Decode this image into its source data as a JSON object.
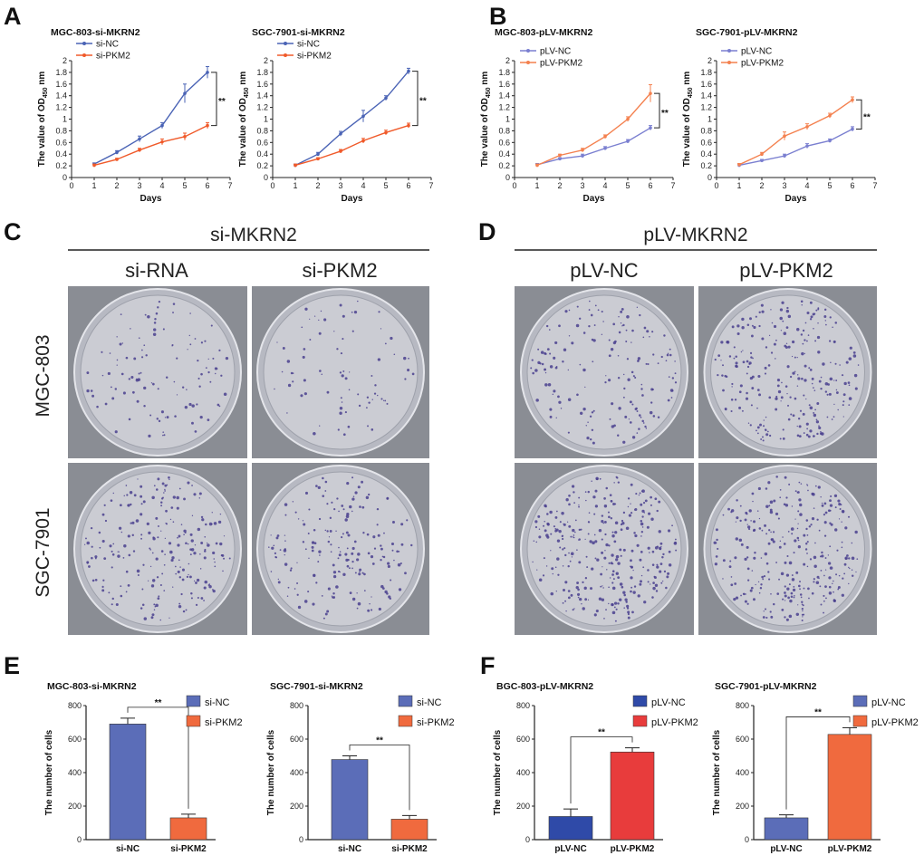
{
  "panel_letters": {
    "a": "A",
    "b": "B",
    "c": "C",
    "d": "D",
    "e": "E",
    "f": "F"
  },
  "colony": {
    "left_header": "si-MKRN2",
    "right_header": "pLV-MKRN2",
    "left_columns": [
      "si-RNA",
      "si-PKM2"
    ],
    "right_columns": [
      "pLV-NC",
      "pLV-PKM2"
    ],
    "rows": [
      "MGC-803",
      "SGC-7901"
    ],
    "dish_colors": {
      "background": "#8a8d94",
      "plate": "#cbccd3",
      "colony": "#4a3f8e"
    }
  },
  "chart_data": [
    {
      "type": "line",
      "title": "MGC-803-si-MKRN2",
      "xlabel": "Days",
      "ylabel": "The value of OD450 nm",
      "xlim": [
        0,
        7
      ],
      "ylim": [
        0,
        2.0
      ],
      "xticks": [
        0,
        1,
        2,
        3,
        4,
        5,
        6,
        7
      ],
      "yticks": [
        0,
        0.2,
        0.4,
        0.6,
        0.8,
        1.0,
        1.2,
        1.4,
        1.6,
        1.8,
        2.0
      ],
      "x": [
        1,
        2,
        3,
        4,
        5,
        6
      ],
      "series": [
        {
          "name": "si-NC",
          "color": "#4a63b5",
          "values": [
            0.23,
            0.43,
            0.66,
            0.89,
            1.44,
            1.8
          ],
          "errors": [
            0.02,
            0.03,
            0.05,
            0.05,
            0.16,
            0.1
          ]
        },
        {
          "name": "si-PKM2",
          "color": "#f05a2a",
          "values": [
            0.21,
            0.31,
            0.47,
            0.61,
            0.7,
            0.89
          ],
          "errors": [
            0.02,
            0.02,
            0.03,
            0.05,
            0.06,
            0.05
          ]
        }
      ],
      "significance": "**"
    },
    {
      "type": "line",
      "title": "SGC-7901-si-MKRN2",
      "xlabel": "Days",
      "ylabel": "The value of OD450 nm",
      "xlim": [
        0,
        7
      ],
      "ylim": [
        0,
        2.0
      ],
      "xticks": [
        0,
        1,
        2,
        3,
        4,
        5,
        6,
        7
      ],
      "yticks": [
        0,
        0.2,
        0.4,
        0.6,
        0.8,
        1.0,
        1.2,
        1.4,
        1.6,
        1.8,
        2.0
      ],
      "x": [
        1,
        2,
        3,
        4,
        5,
        6
      ],
      "series": [
        {
          "name": "si-NC",
          "color": "#4a63b5",
          "values": [
            0.21,
            0.4,
            0.75,
            1.05,
            1.36,
            1.82
          ],
          "errors": [
            0.02,
            0.03,
            0.04,
            0.1,
            0.04,
            0.05
          ]
        },
        {
          "name": "si-PKM2",
          "color": "#f05a2a",
          "values": [
            0.21,
            0.32,
            0.45,
            0.63,
            0.77,
            0.89
          ],
          "errors": [
            0.02,
            0.02,
            0.03,
            0.04,
            0.04,
            0.04
          ]
        }
      ],
      "significance": "**"
    },
    {
      "type": "line",
      "title": "MGC-803-pLV-MKRN2",
      "xlabel": "Days",
      "ylabel": "The value of OD450 nm",
      "xlim": [
        0,
        7
      ],
      "ylim": [
        0,
        2.0
      ],
      "xticks": [
        0,
        1,
        2,
        3,
        4,
        5,
        6,
        7
      ],
      "yticks": [
        0,
        0.2,
        0.4,
        0.6,
        0.8,
        1.0,
        1.2,
        1.4,
        1.6,
        1.8,
        2.0
      ],
      "x": [
        1,
        2,
        3,
        4,
        5,
        6
      ],
      "series": [
        {
          "name": "pLV-NC",
          "color": "#7a7fd0",
          "values": [
            0.22,
            0.32,
            0.37,
            0.5,
            0.62,
            0.85
          ],
          "errors": [
            0.02,
            0.02,
            0.03,
            0.03,
            0.03,
            0.04
          ]
        },
        {
          "name": "pLV-PKM2",
          "color": "#f4814f",
          "values": [
            0.21,
            0.38,
            0.47,
            0.7,
            1.0,
            1.44
          ],
          "errors": [
            0.02,
            0.02,
            0.03,
            0.03,
            0.04,
            0.15
          ]
        }
      ],
      "significance": "**"
    },
    {
      "type": "line",
      "title": "SGC-7901-pLV-MKRN2",
      "xlabel": "Days",
      "ylabel": "The value of OD450 nm",
      "xlim": [
        0,
        7
      ],
      "ylim": [
        0,
        2.0
      ],
      "xticks": [
        0,
        1,
        2,
        3,
        4,
        5,
        6,
        7
      ],
      "yticks": [
        0,
        0.2,
        0.4,
        0.6,
        0.8,
        1.0,
        1.2,
        1.4,
        1.6,
        1.8,
        2.0
      ],
      "x": [
        1,
        2,
        3,
        4,
        5,
        6
      ],
      "series": [
        {
          "name": "pLV-NC",
          "color": "#7a7fd0",
          "values": [
            0.21,
            0.29,
            0.37,
            0.54,
            0.63,
            0.83
          ],
          "errors": [
            0.02,
            0.02,
            0.03,
            0.04,
            0.03,
            0.04
          ]
        },
        {
          "name": "pLV-PKM2",
          "color": "#f4814f",
          "values": [
            0.22,
            0.4,
            0.71,
            0.87,
            1.06,
            1.33
          ],
          "errors": [
            0.02,
            0.03,
            0.07,
            0.05,
            0.04,
            0.05
          ]
        }
      ],
      "significance": "**"
    },
    {
      "type": "bar",
      "title": "MGC-803-si-MKRN2",
      "ylabel": "The number of cells",
      "ylim": [
        0,
        800
      ],
      "yticks": [
        0,
        200,
        400,
        600,
        800
      ],
      "categories": [
        "si-NC",
        "si-PKM2"
      ],
      "values": [
        690,
        130
      ],
      "errors": [
        35,
        22
      ],
      "colors": [
        "#5b6db8",
        "#f06a3e"
      ],
      "legend": [
        "si-NC",
        "si-PKM2"
      ],
      "significance": "**"
    },
    {
      "type": "bar",
      "title": "SGC-7901-si-MKRN2",
      "ylabel": "The number of cells",
      "ylim": [
        0,
        800
      ],
      "yticks": [
        0,
        200,
        400,
        600,
        800
      ],
      "categories": [
        "si-NC",
        "si-PKM2"
      ],
      "values": [
        478,
        122
      ],
      "errors": [
        22,
        22
      ],
      "colors": [
        "#5b6db8",
        "#f06a3e"
      ],
      "legend": [
        "si-NC",
        "si-PKM2"
      ],
      "significance": "**"
    },
    {
      "type": "bar",
      "title": "BGC-803-pLV-MKRN2",
      "ylabel": "The number of cells",
      "ylim": [
        0,
        800
      ],
      "yticks": [
        0,
        200,
        400,
        600,
        800
      ],
      "categories": [
        "pLV-NC",
        "pLV-PKM2"
      ],
      "values": [
        138,
        523
      ],
      "errors": [
        45,
        25
      ],
      "colors": [
        "#2f4aa8",
        "#e83c3c"
      ],
      "legend": [
        "pLV-NC",
        "pLV-PKM2"
      ],
      "significance": "**"
    },
    {
      "type": "bar",
      "title": "SGC-7901-pLV-MKRN2",
      "ylabel": "The number of cells",
      "ylim": [
        0,
        800
      ],
      "yticks": [
        0,
        200,
        400,
        600,
        800
      ],
      "categories": [
        "pLV-NC",
        "pLV-PKM2"
      ],
      "values": [
        130,
        628
      ],
      "errors": [
        18,
        40
      ],
      "colors": [
        "#5b6db8",
        "#f06a3e"
      ],
      "legend": [
        "pLV-NC",
        "pLV-PKM2"
      ],
      "significance": "**"
    }
  ]
}
